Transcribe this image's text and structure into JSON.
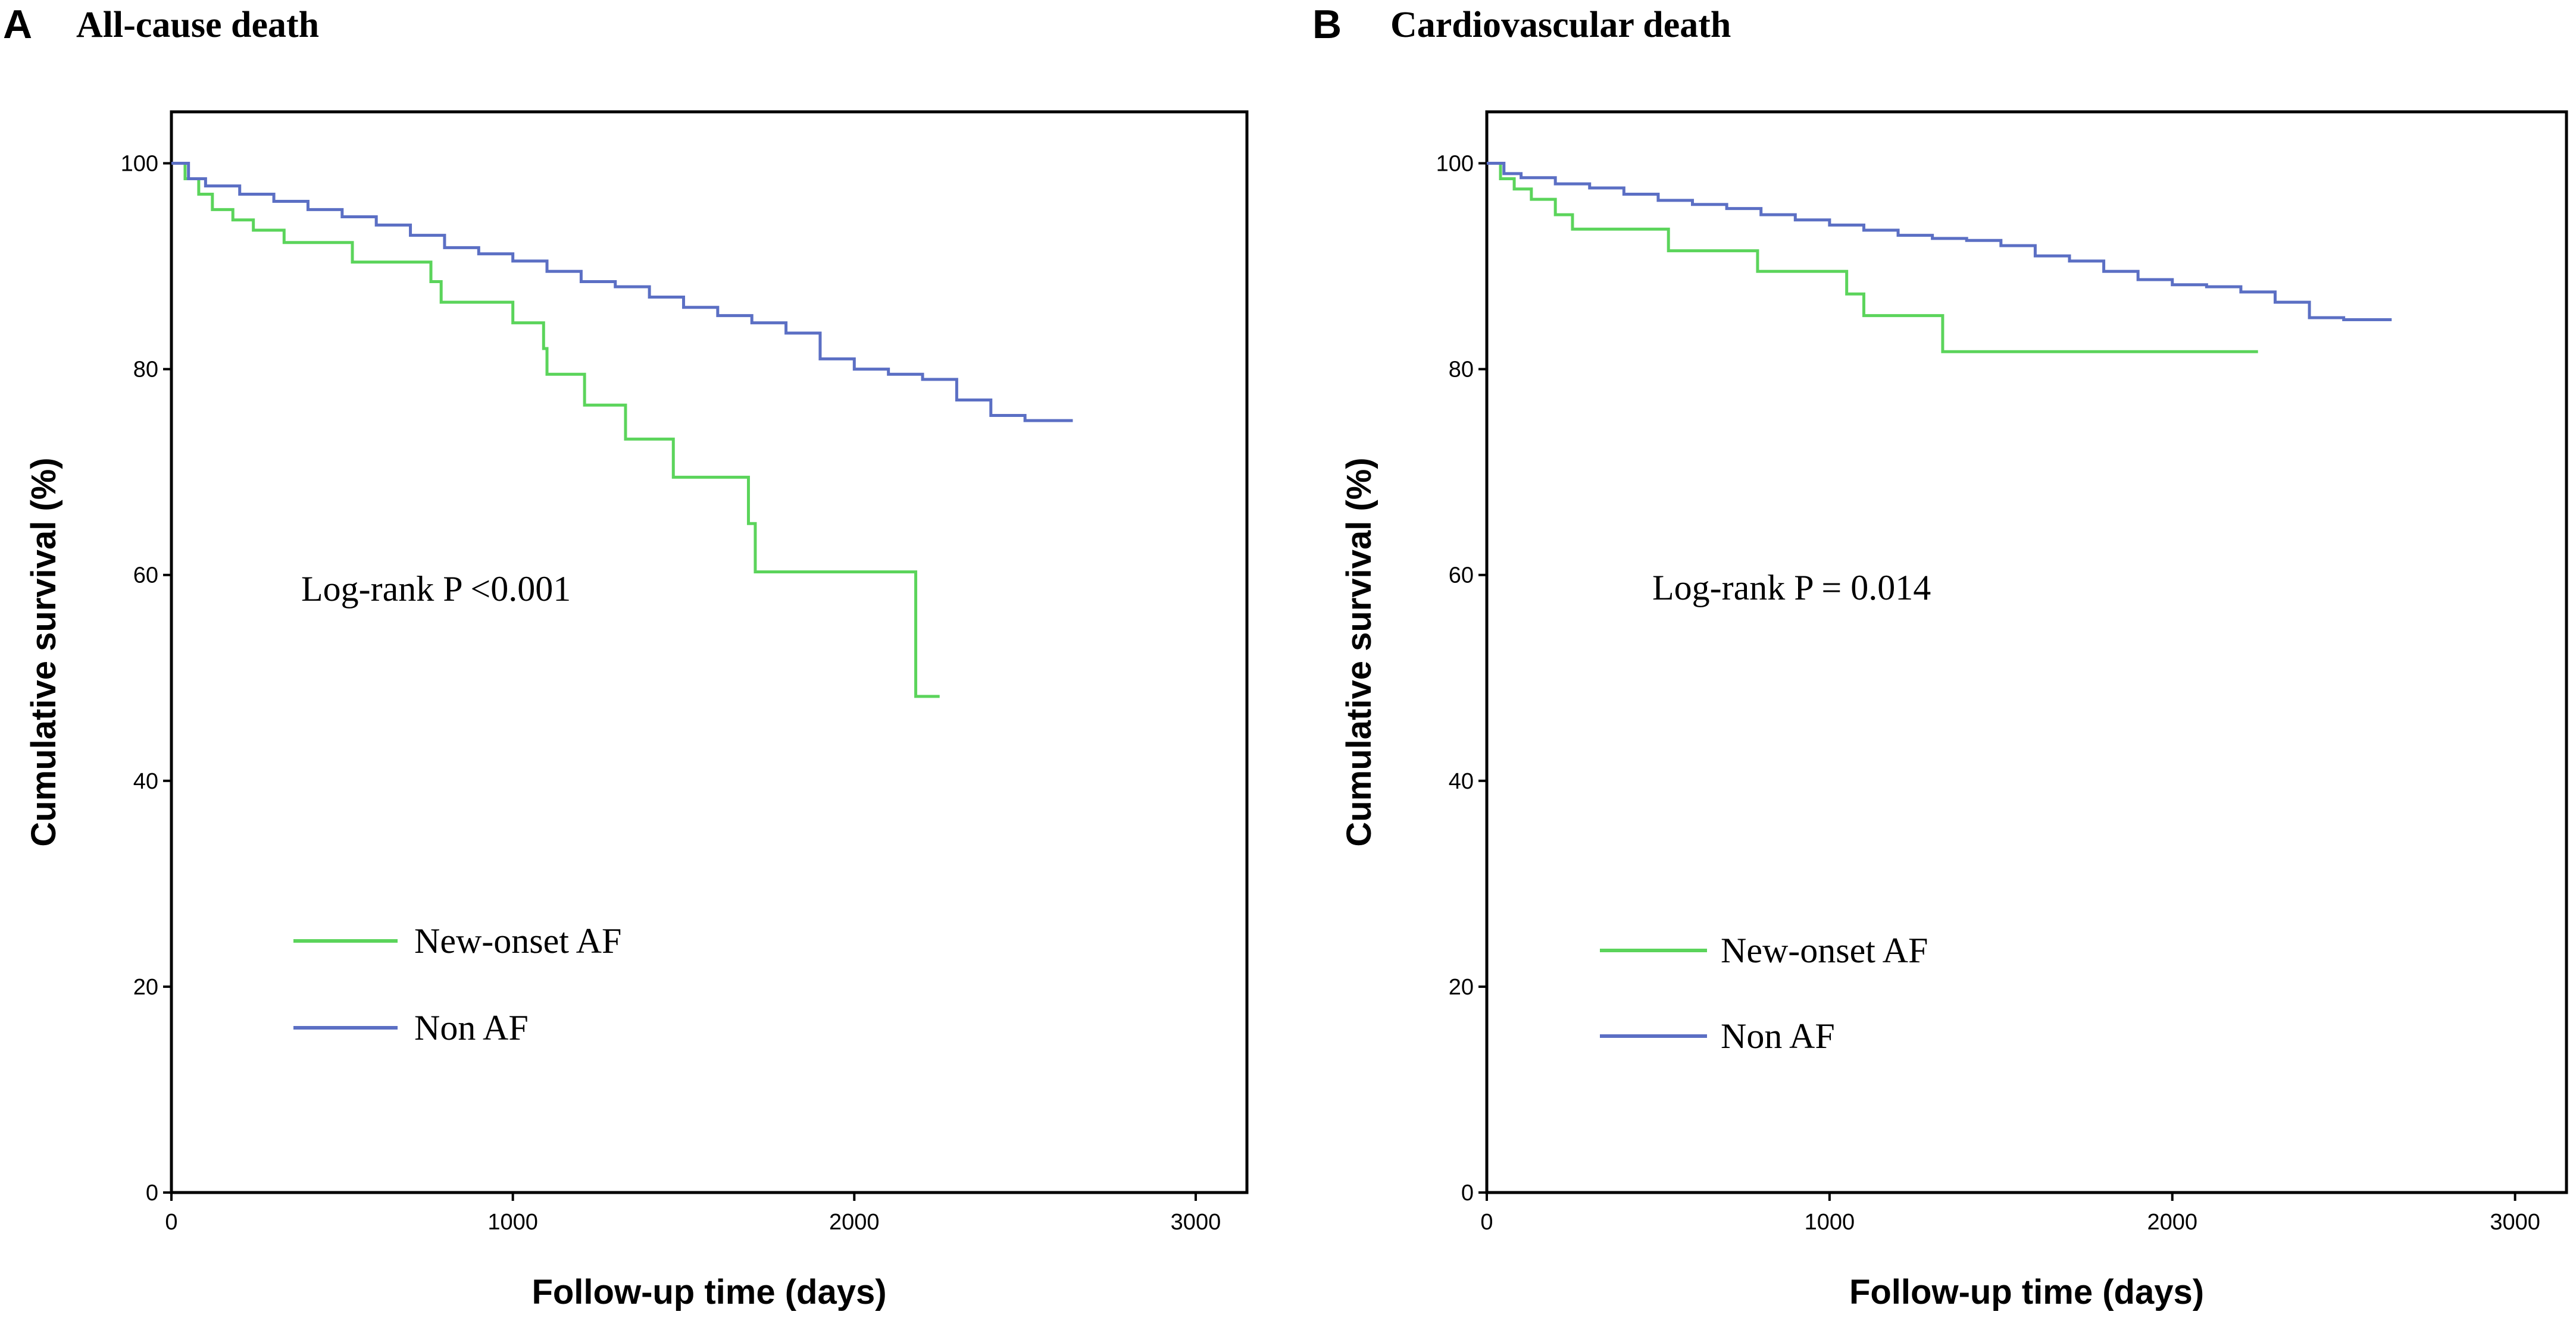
{
  "chart_data": [
    {
      "type": "line",
      "subtype": "kaplan-meier",
      "panel_letter": "A",
      "title": "All-cause death",
      "xlabel": "Follow-up time (days)",
      "ylabel": "Cumulative survival (%)",
      "xlim": [
        0,
        3150
      ],
      "ylim": [
        0,
        105
      ],
      "xticks": [
        0,
        1000,
        2000,
        3000
      ],
      "yticks": [
        0,
        20,
        40,
        60,
        80,
        100
      ],
      "annotation": "Log-rank P <0.001",
      "legend": {
        "placement": "lower-left",
        "entries": [
          "New-onset AF",
          "Non AF"
        ]
      },
      "series": [
        {
          "name": "New-onset AF",
          "color": "#5bd45b",
          "x": [
            0,
            40,
            80,
            120,
            180,
            240,
            330,
            530,
            760,
            790,
            1000,
            1090,
            1100,
            1210,
            1330,
            1470,
            1690,
            1710,
            2180,
            2250
          ],
          "y": [
            100,
            98.5,
            97,
            95.5,
            94.5,
            93.5,
            92.3,
            90.4,
            88.5,
            86.5,
            84.5,
            82,
            79.5,
            76.5,
            73.2,
            69.5,
            65,
            60.3,
            48.2,
            48.2
          ]
        },
        {
          "name": "Non AF",
          "color": "#5b6fc4",
          "x": [
            0,
            50,
            100,
            200,
            300,
            400,
            500,
            600,
            700,
            800,
            900,
            1000,
            1100,
            1200,
            1300,
            1400,
            1500,
            1600,
            1700,
            1800,
            1900,
            2000,
            2100,
            2200,
            2300,
            2400,
            2500,
            2640
          ],
          "y": [
            100,
            98.5,
            97.8,
            97,
            96.3,
            95.5,
            94.8,
            94,
            93,
            91.8,
            91.2,
            90.5,
            89.5,
            88.5,
            88,
            87,
            86,
            85.2,
            84.5,
            83.5,
            81,
            80,
            79.5,
            79,
            77,
            75.5,
            75,
            75
          ]
        }
      ]
    },
    {
      "type": "line",
      "subtype": "kaplan-meier",
      "panel_letter": "B",
      "title": "Cardiovascular death",
      "xlabel": "Follow-up time (days)",
      "ylabel": "Cumulative survival (%)",
      "xlim": [
        0,
        3150
      ],
      "ylim": [
        0,
        105
      ],
      "xticks": [
        0,
        1000,
        2000,
        3000
      ],
      "yticks": [
        0,
        20,
        40,
        60,
        80,
        100
      ],
      "annotation": "Log-rank P = 0.014",
      "legend": {
        "placement": "lower-left",
        "entries": [
          "New-onset AF",
          "Non AF"
        ]
      },
      "series": [
        {
          "name": "New-onset AF",
          "color": "#5bd45b",
          "x": [
            0,
            40,
            80,
            130,
            200,
            250,
            530,
            790,
            1050,
            1100,
            1330,
            2250
          ],
          "y": [
            100,
            98.5,
            97.5,
            96.5,
            95,
            93.6,
            91.5,
            89.5,
            87.3,
            85.2,
            81.7,
            81.7
          ]
        },
        {
          "name": "Non AF",
          "color": "#5b6fc4",
          "x": [
            0,
            50,
            100,
            200,
            300,
            400,
            500,
            600,
            700,
            800,
            900,
            1000,
            1100,
            1200,
            1300,
            1400,
            1500,
            1600,
            1700,
            1800,
            1900,
            2000,
            2100,
            2200,
            2300,
            2400,
            2500,
            2640
          ],
          "y": [
            100,
            99,
            98.6,
            98,
            97.6,
            97,
            96.4,
            96,
            95.6,
            95,
            94.5,
            94,
            93.5,
            93,
            92.7,
            92.5,
            92,
            91,
            90.5,
            89.5,
            88.7,
            88.2,
            88,
            87.5,
            86.5,
            85,
            84.8,
            84.8
          ]
        }
      ]
    }
  ]
}
